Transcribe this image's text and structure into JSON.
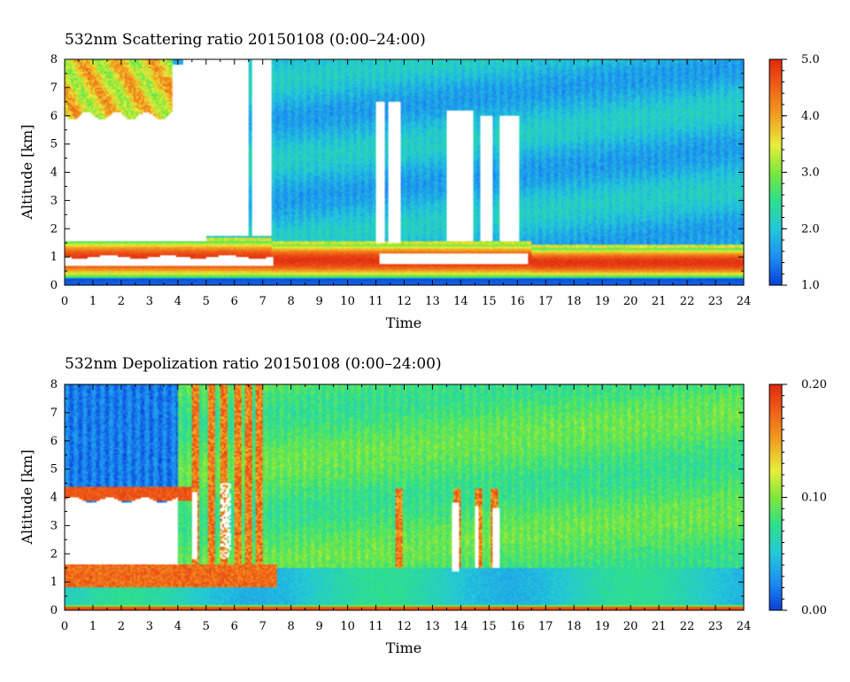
{
  "chart_data": [
    {
      "type": "heatmap",
      "title": "532nm Scattering ratio  20150108 (0:00–24:00)",
      "xlabel": "Time",
      "ylabel": "Altitude [km]",
      "xlim": [
        0,
        24
      ],
      "ylim": [
        0,
        8
      ],
      "x_ticks": [
        "0",
        "1",
        "2",
        "3",
        "4",
        "5",
        "6",
        "7",
        "8",
        "9",
        "10",
        "11",
        "12",
        "13",
        "14",
        "15",
        "16",
        "17",
        "18",
        "19",
        "20",
        "21",
        "22",
        "23",
        "24"
      ],
      "y_ticks": [
        "0",
        "1",
        "2",
        "3",
        "4",
        "5",
        "6",
        "7",
        "8"
      ],
      "colorbar": {
        "min": 1.0,
        "max": 5.0,
        "ticks": [
          "1.0",
          "2.0",
          "3.0",
          "4.0",
          "5.0"
        ],
        "colormap": "rainbow (blue-cyan-green-yellow-red)"
      },
      "colormap_colors": [
        "#0a3fd8",
        "#1c8cf2",
        "#23c8d8",
        "#2fe08a",
        "#7ee83a",
        "#e8ee3a",
        "#f0a020",
        "#f06018",
        "#e02a10"
      ],
      "features": [
        {
          "name": "aerosol layer",
          "time": [
            0,
            24
          ],
          "altitude": [
            0.3,
            1.3
          ],
          "value_range": [
            3.5,
            5.0
          ]
        },
        {
          "name": "saturated (no data)",
          "time": [
            0,
            7.3
          ],
          "altitude": [
            0.7,
            1.0
          ]
        },
        {
          "name": "high cloud",
          "time": [
            0,
            3.8
          ],
          "altitude": [
            6.0,
            8.0
          ],
          "value_range": [
            2.5,
            5.0
          ]
        },
        {
          "name": "no signal (white)",
          "time": [
            0,
            5.0
          ],
          "altitude": [
            1.5,
            6.0
          ]
        },
        {
          "name": "no signal (white)",
          "time": [
            5.0,
            7.3
          ],
          "altitude": [
            1.7,
            8.0
          ]
        },
        {
          "name": "no signal (white)",
          "time": [
            11.0,
            11.8
          ],
          "altitude": [
            1.5,
            6.5
          ]
        },
        {
          "name": "no signal (white)",
          "time": [
            13.5,
            14.4
          ],
          "altitude": [
            1.5,
            6.2
          ]
        },
        {
          "name": "no signal (white)",
          "time": [
            14.7,
            15.1
          ],
          "altitude": [
            1.5,
            6.0
          ]
        },
        {
          "name": "no signal (white)",
          "time": [
            15.4,
            16.0
          ],
          "altitude": [
            1.5,
            6.0
          ]
        },
        {
          "name": "background",
          "time": [
            7.3,
            24
          ],
          "altitude": [
            1.3,
            8.0
          ],
          "value_range": [
            1.3,
            2.0
          ]
        }
      ]
    },
    {
      "type": "heatmap",
      "title": "532nm Depolization ratio  20150108 (0:00–24:00)",
      "xlabel": "Time",
      "ylabel": "Altitude [km]",
      "xlim": [
        0,
        24
      ],
      "ylim": [
        0,
        8
      ],
      "x_ticks": [
        "0",
        "1",
        "2",
        "3",
        "4",
        "5",
        "6",
        "7",
        "8",
        "9",
        "10",
        "11",
        "12",
        "13",
        "14",
        "15",
        "16",
        "17",
        "18",
        "19",
        "20",
        "21",
        "22",
        "23",
        "24"
      ],
      "y_ticks": [
        "0",
        "1",
        "2",
        "3",
        "4",
        "5",
        "6",
        "7",
        "8"
      ],
      "colorbar": {
        "min": 0.0,
        "max": 0.2,
        "ticks": [
          "0.00",
          "0.10",
          "0.20"
        ],
        "colormap": "rainbow (blue-cyan-green-yellow-red)"
      },
      "colormap_colors": [
        "#0a3fd8",
        "#1c8cf2",
        "#23c8d8",
        "#2fe08a",
        "#7ee83a",
        "#e8ee3a",
        "#f0a020",
        "#f06018",
        "#e02a10"
      ],
      "features": [
        {
          "name": "boundary layer",
          "time": [
            0,
            24
          ],
          "altitude": [
            0.0,
            1.5
          ],
          "value_range": [
            0.03,
            0.07
          ]
        },
        {
          "name": "dust layer",
          "time": [
            0,
            7.5
          ],
          "altitude": [
            0.8,
            1.6
          ],
          "value_range": [
            0.14,
            0.2
          ]
        },
        {
          "name": "no signal (white)",
          "time": [
            0,
            4.0
          ],
          "altitude": [
            1.6,
            3.9
          ]
        },
        {
          "name": "cloud top band",
          "time": [
            0,
            4.5
          ],
          "altitude": [
            3.9,
            4.3
          ],
          "value_range": [
            0.15,
            0.2
          ]
        },
        {
          "name": "upper troposphere",
          "time": [
            0,
            4.0
          ],
          "altitude": [
            4.3,
            8.0
          ],
          "value_range": [
            0.0,
            0.04
          ]
        },
        {
          "name": "background",
          "time": [
            7.5,
            24
          ],
          "altitude": [
            1.5,
            8.0
          ],
          "value_range": [
            0.04,
            0.09
          ]
        },
        {
          "name": "high depolarization columns",
          "time": [
            11.8,
            16.3
          ],
          "altitude": [
            1.2,
            4.2
          ],
          "value_range": [
            0.12,
            0.2
          ]
        }
      ]
    }
  ]
}
